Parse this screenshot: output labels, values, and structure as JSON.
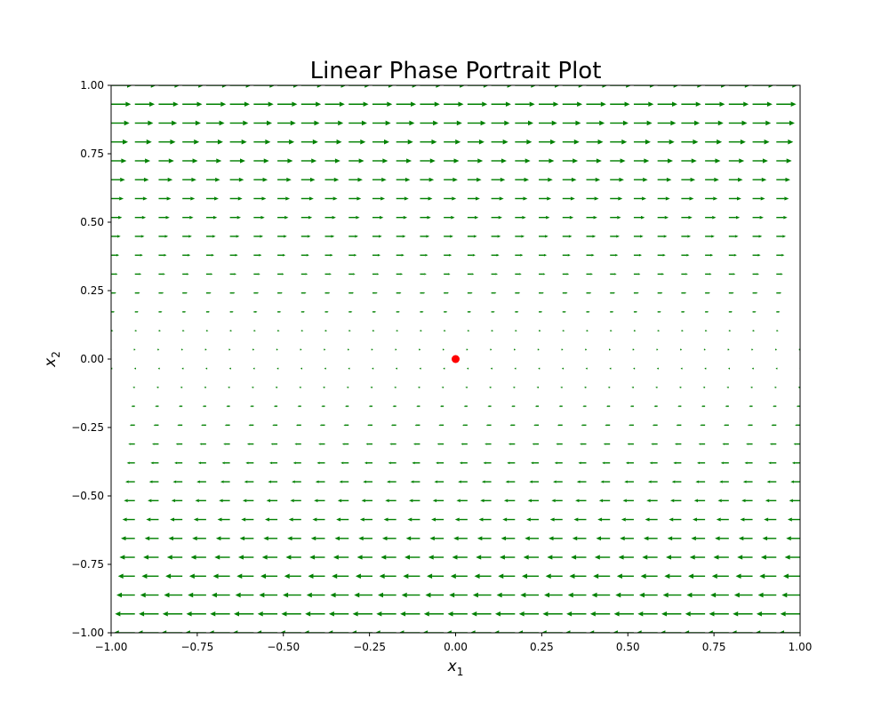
{
  "chart_data": {
    "type": "quiver",
    "title": "Linear Phase Portrait Plot",
    "xlabel": {
      "base": "x",
      "sub": "1"
    },
    "ylabel": {
      "base": "x",
      "sub": "2"
    },
    "xlim": [
      -1,
      1
    ],
    "ylim": [
      -1,
      1
    ],
    "x_ticks": [
      -1.0,
      -0.75,
      -0.5,
      -0.25,
      0.0,
      0.25,
      0.5,
      0.75,
      1.0
    ],
    "x_tick_labels": [
      "−1.00",
      "−0.75",
      "−0.50",
      "−0.25",
      "0.00",
      "0.25",
      "0.50",
      "0.75",
      "1.00"
    ],
    "y_ticks": [
      -1.0,
      -0.75,
      -0.5,
      -0.25,
      0.0,
      0.25,
      0.5,
      0.75,
      1.0
    ],
    "y_tick_labels": [
      "−1.00",
      "−0.75",
      "−0.50",
      "−0.25",
      "0.00",
      "0.25",
      "0.50",
      "0.75",
      "1.00"
    ],
    "grid": false,
    "vector_field": {
      "expression": {
        "dx1": "x2",
        "dx2": "0"
      },
      "grid_points_per_axis": 30,
      "range": [
        -1,
        1
      ],
      "color": "#008000"
    },
    "equilibrium_point": {
      "x": 0,
      "y": 0,
      "color": "#ff0000"
    }
  }
}
